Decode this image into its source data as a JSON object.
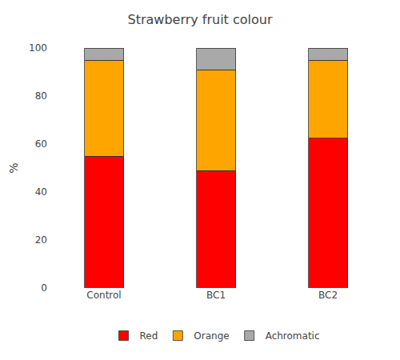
{
  "chart_data": {
    "type": "bar",
    "title": "Strawberry fruit colour",
    "categories": [
      "Control",
      "BC1",
      "BC2"
    ],
    "series": [
      {
        "name": "Red",
        "color": "#FF0000",
        "values": [
          55.0,
          49.0,
          62.5
        ]
      },
      {
        "name": "Orange",
        "color": "#FFA500",
        "values": [
          40.0,
          42.0,
          32.5
        ]
      },
      {
        "name": "Achromatic",
        "color": "#A9A9A9",
        "values": [
          5.0,
          9.0,
          5.0
        ]
      }
    ],
    "ylabel": "%",
    "ylim": [
      0,
      100
    ],
    "yticks": [
      0,
      20,
      40,
      60,
      80,
      100
    ],
    "stacked": true,
    "grid": false,
    "legend": "bottom"
  }
}
